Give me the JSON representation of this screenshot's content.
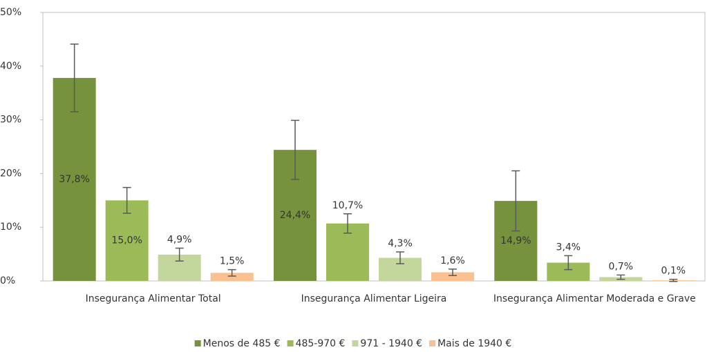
{
  "chart_data": {
    "type": "bar",
    "categories": [
      "Insegurança Alimentar Total",
      "Insegurança Alimentar Ligeira",
      "Insegurança Alimentar Moderada e Grave"
    ],
    "series": [
      {
        "name": "Menos de 485 €",
        "color": "#76923c",
        "values": [
          37.8,
          24.4,
          14.9
        ],
        "value_labels": [
          "37,8%",
          "24,4%",
          "14,9%"
        ],
        "errors": [
          6.3,
          5.5,
          5.6
        ]
      },
      {
        "name": "485-970 €",
        "color": "#9bbb59",
        "values": [
          15.0,
          10.7,
          3.4
        ],
        "value_labels": [
          "15,0%",
          "10,7%",
          "3,4%"
        ],
        "errors": [
          2.4,
          1.8,
          1.3
        ]
      },
      {
        "name": "971 - 1940 €",
        "color": "#c3d69b",
        "values": [
          4.9,
          4.3,
          0.7
        ],
        "value_labels": [
          "4,9%",
          "4,3%",
          "0,7%"
        ],
        "errors": [
          1.2,
          1.1,
          0.4
        ]
      },
      {
        "name": "Mais de 1940 €",
        "color": "#fac090",
        "values": [
          1.5,
          1.6,
          0.1
        ],
        "value_labels": [
          "1,5%",
          "1,6%",
          "0,1%"
        ],
        "errors": [
          0.6,
          0.6,
          0.2
        ]
      }
    ],
    "ylim": [
      0,
      50
    ],
    "yticks": [
      {
        "value": 0,
        "label": "0%"
      },
      {
        "value": 10,
        "label": "10%"
      },
      {
        "value": 20,
        "label": "20%"
      },
      {
        "value": 30,
        "label": "30%"
      },
      {
        "value": 40,
        "label": "40%"
      },
      {
        "value": 50,
        "label": "50%"
      }
    ],
    "legend": "bottom"
  }
}
